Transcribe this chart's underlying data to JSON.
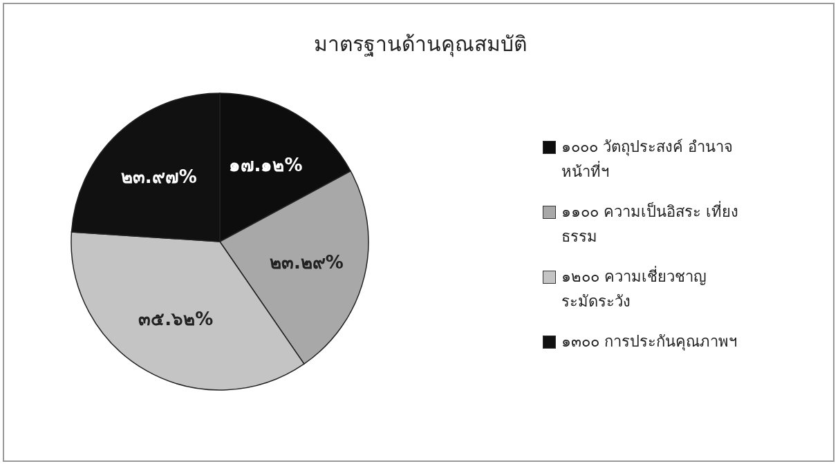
{
  "chart_data": {
    "type": "pie",
    "title": "มาตรฐานด้านคุณสมบัติ",
    "categories": [
      "๑๐๐๐ วัตถุประสงค์ อำนาจหน้าที่ฯ",
      "๑๑๐๐ ความเป็นอิสระ เที่ยงธรรม",
      "๑๒๐๐ ความเชี่ยวชาญ ระมัดระวัง",
      "๑๓๐๐ การประกันคุณภาพฯ"
    ],
    "values": [
      17.12,
      23.29,
      35.62,
      23.97
    ],
    "value_labels": [
      "๑๗.๑๒%",
      "๒๓.๒๙%",
      "๓๕.๖๒%",
      "๒๓.๙๗%"
    ],
    "colors": [
      "#0d0d0d",
      "#a8a8a8",
      "#c4c4c4",
      "#111111"
    ],
    "legend": "right"
  }
}
